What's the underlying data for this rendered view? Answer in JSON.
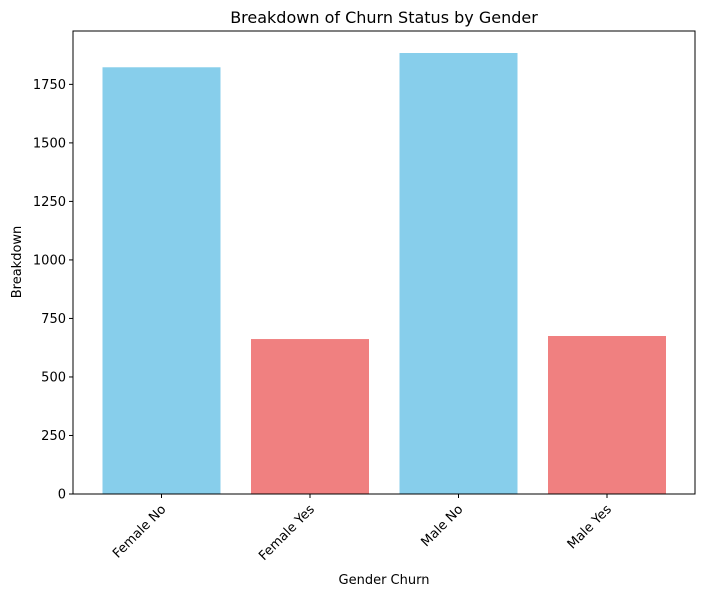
{
  "chart_data": {
    "type": "bar",
    "title": "Breakdown of Churn Status by Gender",
    "xlabel": "Gender Churn",
    "ylabel": "Breakdown",
    "categories": [
      "Female No",
      "Female Yes",
      "Male No",
      "Male Yes"
    ],
    "values": [
      1823,
      662,
      1884,
      675
    ],
    "colors": [
      "#87ceeb",
      "#f08080",
      "#87ceeb",
      "#f08080"
    ],
    "ylim": [
      0,
      1978
    ],
    "yticks": [
      0,
      250,
      500,
      750,
      1000,
      1250,
      1500,
      1750
    ],
    "grid": false,
    "legend": "none"
  }
}
